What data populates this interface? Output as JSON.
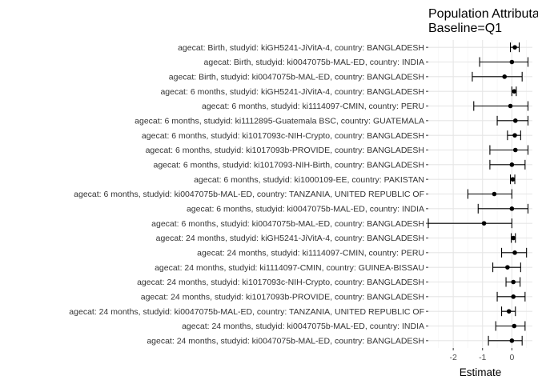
{
  "chart_data": {
    "type": "scatter",
    "title_lines": [
      "Population Attributable",
      "Baseline=Q1"
    ],
    "xlabel": "Estimate",
    "ylabel": "",
    "xlim": [
      -2.85,
      0.7
    ],
    "xticks": [
      -2,
      -1,
      0
    ],
    "grid": true,
    "legend": "none",
    "colors": {
      "point": "#000000",
      "grid_major": "#e6e6e6",
      "grid_minor": "#f2f2f2",
      "text": "#333333",
      "axis_text": "#4d4d4d"
    },
    "series": [
      {
        "label": "agecat: Birth, studyid: kiGH5241-JiVitA-4, country: BANGLADESH",
        "estimate": 0.1,
        "lower": -0.05,
        "upper": 0.25
      },
      {
        "label": "agecat: Birth, studyid: ki0047075b-MAL-ED, country: INDIA",
        "estimate": 0.0,
        "lower": -1.1,
        "upper": 0.55
      },
      {
        "label": "agecat: Birth, studyid: ki0047075b-MAL-ED, country: BANGLADESH",
        "estimate": -0.25,
        "lower": -1.35,
        "upper": 0.35
      },
      {
        "label": "agecat: 6 months, studyid: kiGH5241-JiVitA-4, country: BANGLADESH",
        "estimate": 0.08,
        "lower": 0.0,
        "upper": 0.15
      },
      {
        "label": "agecat: 6 months, studyid: ki1114097-CMIN, country: PERU",
        "estimate": -0.05,
        "lower": -1.3,
        "upper": 0.55
      },
      {
        "label": "agecat: 6 months, studyid: ki1112895-Guatemala BSC, country: GUATEMALA",
        "estimate": 0.12,
        "lower": -0.5,
        "upper": 0.55
      },
      {
        "label": "agecat: 6 months, studyid: ki1017093c-NIH-Crypto, country: BANGLADESH",
        "estimate": 0.1,
        "lower": -0.15,
        "upper": 0.3
      },
      {
        "label": "agecat: 6 months, studyid: ki1017093b-PROVIDE, country: BANGLADESH",
        "estimate": 0.12,
        "lower": -0.75,
        "upper": 0.55
      },
      {
        "label": "agecat: 6 months, studyid: ki1017093-NIH-Birth, country: BANGLADESH",
        "estimate": 0.0,
        "lower": -0.75,
        "upper": 0.45
      },
      {
        "label": "agecat: 6 months, studyid: ki1000109-EE, country: PAKISTAN",
        "estimate": 0.03,
        "lower": -0.05,
        "upper": 0.1
      },
      {
        "label": "agecat: 6 months, studyid: ki0047075b-MAL-ED, country: TANZANIA, UNITED REPUBLIC OF",
        "estimate": -0.6,
        "lower": -1.5,
        "upper": 0.0
      },
      {
        "label": "agecat: 6 months, studyid: ki0047075b-MAL-ED, country: INDIA",
        "estimate": 0.0,
        "lower": -1.15,
        "upper": 0.55
      },
      {
        "label": "agecat: 6 months, studyid: ki0047075b-MAL-ED, country: BANGLADESH",
        "estimate": -0.95,
        "lower": -2.85,
        "upper": 0.0
      },
      {
        "label": "agecat: 24 months, studyid: kiGH5241-JiVitA-4, country: BANGLADESH",
        "estimate": 0.05,
        "lower": -0.02,
        "upper": 0.12
      },
      {
        "label": "agecat: 24 months, studyid: ki1114097-CMIN, country: PERU",
        "estimate": 0.1,
        "lower": -0.35,
        "upper": 0.5
      },
      {
        "label": "agecat: 24 months, studyid: ki1114097-CMIN, country: GUINEA-BISSAU",
        "estimate": -0.15,
        "lower": -0.65,
        "upper": 0.3
      },
      {
        "label": "agecat: 24 months, studyid: ki1017093c-NIH-Crypto, country: BANGLADESH",
        "estimate": 0.05,
        "lower": -0.2,
        "upper": 0.28
      },
      {
        "label": "agecat: 24 months, studyid: ki1017093b-PROVIDE, country: BANGLADESH",
        "estimate": 0.05,
        "lower": -0.5,
        "upper": 0.45
      },
      {
        "label": "agecat: 24 months, studyid: ki0047075b-MAL-ED, country: TANZANIA, UNITED REPUBLIC OF",
        "estimate": -0.1,
        "lower": -0.35,
        "upper": 0.12
      },
      {
        "label": "agecat: 24 months, studyid: ki0047075b-MAL-ED, country: INDIA",
        "estimate": 0.08,
        "lower": -0.55,
        "upper": 0.45
      },
      {
        "label": "agecat: 24 months, studyid: ki0047075b-MAL-ED, country: BANGLADESH",
        "estimate": 0.0,
        "lower": -0.8,
        "upper": 0.35
      }
    ]
  }
}
